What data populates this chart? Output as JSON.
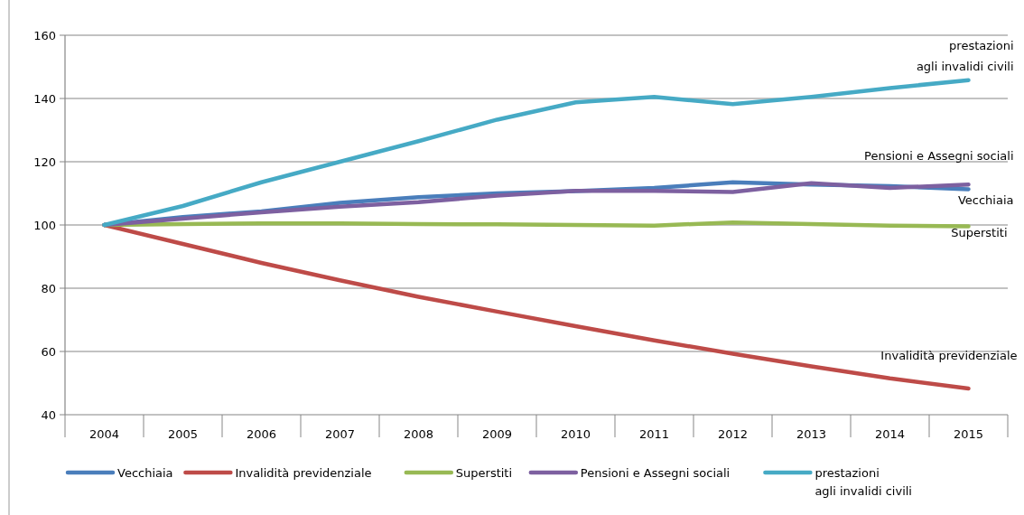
{
  "chart_data": {
    "type": "line",
    "categories": [
      "2004",
      "2005",
      "2006",
      "2007",
      "2008",
      "2009",
      "2010",
      "2011",
      "2012",
      "2013",
      "2014",
      "2015"
    ],
    "series": [
      {
        "name": "Vecchiaia",
        "color": "#4a7ebb",
        "values": [
          100,
          102.5,
          104.3,
          107,
          108.8,
          110,
          110.7,
          111.7,
          113.5,
          112.8,
          112.3,
          111.3
        ]
      },
      {
        "name": "Invalidità previdenziale",
        "color": "#be4b48",
        "values": [
          100,
          94,
          88,
          82.5,
          77.3,
          72.6,
          68,
          63.5,
          59.3,
          55.3,
          51.5,
          48.3
        ]
      },
      {
        "name": "Superstiti",
        "color": "#98b954",
        "values": [
          100,
          100.3,
          100.5,
          100.5,
          100.3,
          100.2,
          100,
          99.8,
          100.8,
          100.3,
          99.8,
          99.6
        ]
      },
      {
        "name": "Pensioni e Assegni sociali",
        "color": "#7d60a0",
        "values": [
          100,
          102,
          104,
          105.8,
          107.2,
          109.3,
          110.8,
          110.8,
          110.4,
          113.2,
          111.7,
          112.8
        ]
      },
      {
        "name": "prestazioni\nagli invalidi civili",
        "color": "#46aac5",
        "values": [
          100,
          106,
          113.5,
          120,
          126.5,
          133.3,
          138.8,
          140.5,
          138.2,
          140.5,
          143.3,
          145.8
        ]
      }
    ],
    "ylim": [
      40,
      160
    ],
    "yticks": [
      40,
      60,
      80,
      100,
      120,
      140,
      160
    ],
    "grid": "y",
    "legend": "bottom",
    "marker": "none",
    "line_style": "solid"
  }
}
